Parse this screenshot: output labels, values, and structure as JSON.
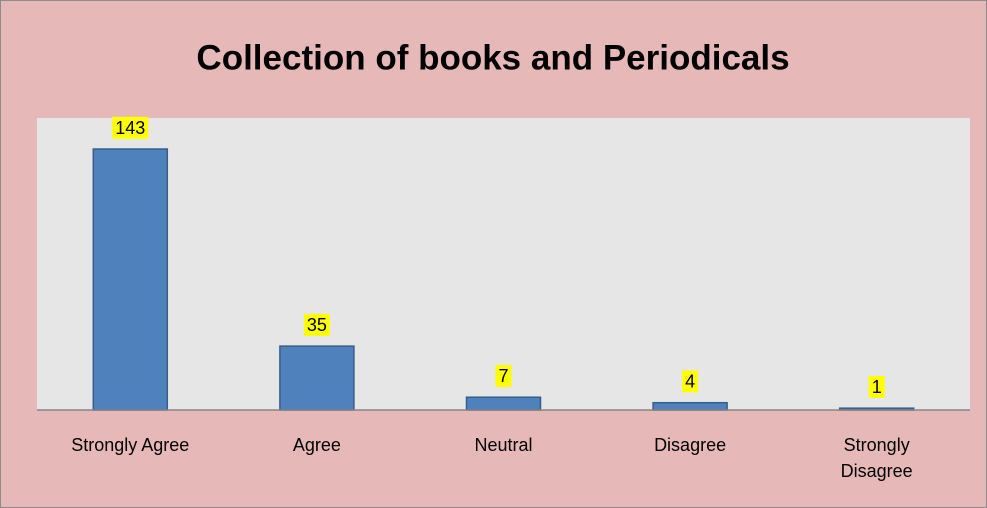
{
  "chart_data": {
    "type": "bar",
    "title": "Collection of books and Periodicals",
    "categories": [
      "Strongly Agree",
      "Agree",
      "Neutral",
      "Disagree",
      "Strongly Disagree"
    ],
    "values": [
      143,
      35,
      7,
      4,
      1
    ],
    "color": "#4f81bd",
    "ylim": [
      0,
      160
    ]
  }
}
